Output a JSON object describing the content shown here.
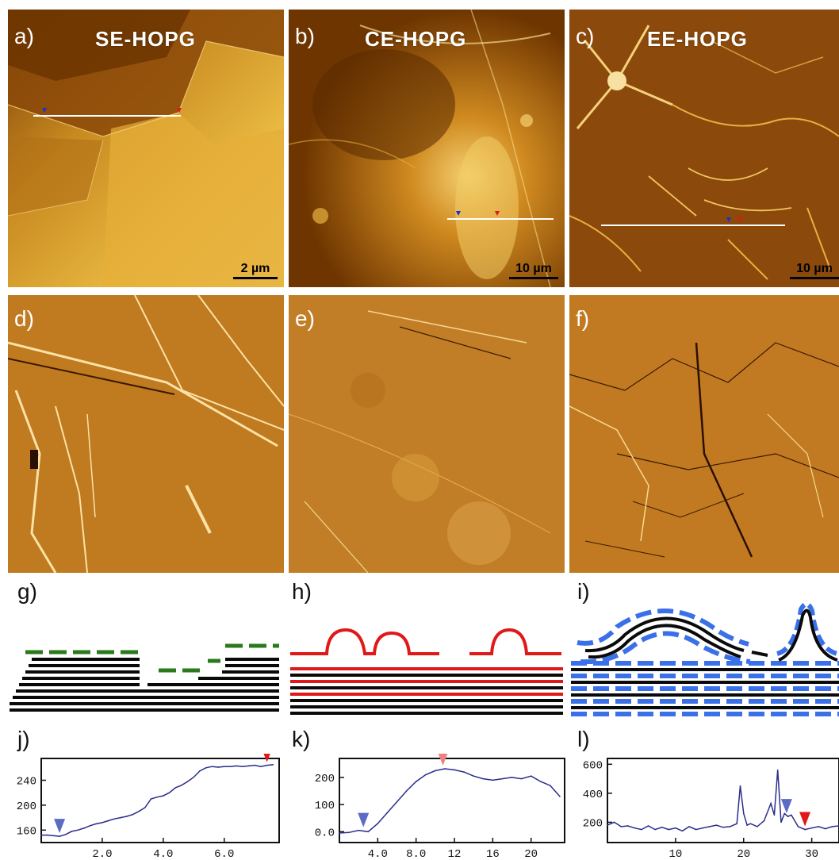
{
  "panels_top": [
    {
      "tag": "a)",
      "title": "SE-HOPG",
      "scale": "2 µm"
    },
    {
      "tag": "b)",
      "title": "CE-HOPG",
      "scale": "10 µm"
    },
    {
      "tag": "c)",
      "title": "EE-HOPG",
      "scale": "10 µm"
    }
  ],
  "panels_mid": [
    {
      "tag": "d)"
    },
    {
      "tag": "e)"
    },
    {
      "tag": "f)"
    }
  ],
  "schematics": [
    {
      "tag": "g)"
    },
    {
      "tag": "h)"
    },
    {
      "tag": "i)"
    }
  ],
  "colors": {
    "afm_dark": "#6a3300",
    "afm_mid": "#b86a10",
    "afm_light": "#f0c050",
    "graphene_black": "#0a0a0a",
    "g_green": "#2a7a1c",
    "h_red": "#e01818",
    "i_blue": "#3a70e8",
    "profile_line": "#2a2d8c",
    "marker_blue": "#5a6cc4",
    "marker_red": "#e01818",
    "marker_pink": "#f08080"
  },
  "chart_data": [
    {
      "type": "line",
      "tag": "j)",
      "x": [
        0.0,
        0.2,
        0.4,
        0.6,
        0.8,
        1.0,
        1.2,
        1.4,
        1.6,
        1.8,
        2.0,
        2.2,
        2.4,
        2.6,
        2.8,
        3.0,
        3.2,
        3.4,
        3.6,
        3.8,
        4.0,
        4.2,
        4.4,
        4.6,
        4.8,
        5.0,
        5.2,
        5.4,
        5.6,
        5.8,
        6.0,
        6.2,
        6.4,
        6.6,
        6.8,
        7.0,
        7.2,
        7.4,
        7.6
      ],
      "values": [
        152,
        152,
        151,
        150,
        153,
        158,
        160,
        163,
        167,
        170,
        172,
        175,
        178,
        180,
        182,
        185,
        190,
        196,
        210,
        213,
        215,
        220,
        228,
        232,
        238,
        245,
        255,
        260,
        262,
        261,
        262,
        262,
        263,
        262,
        263,
        264,
        262,
        264,
        265
      ],
      "xticks": [
        "2.0",
        "4.0",
        "6.0"
      ],
      "xtick_values": [
        2.0,
        4.0,
        6.0
      ],
      "yticks": [
        "160",
        "200",
        "240"
      ],
      "ytick_values": [
        160,
        200,
        240
      ],
      "xlim": [
        0,
        7.8
      ],
      "ylim": [
        140,
        275
      ],
      "markers": [
        {
          "x": 0.6,
          "color": "blue"
        },
        {
          "x": 7.4,
          "color": "red"
        }
      ]
    },
    {
      "type": "line",
      "tag": "k)",
      "x": [
        0,
        1,
        2,
        3,
        4,
        5,
        6,
        7,
        8,
        9,
        10,
        11,
        12,
        13,
        14,
        15,
        16,
        17,
        18,
        19,
        20,
        21,
        22,
        23
      ],
      "values": [
        -5,
        -3,
        5,
        0,
        30,
        70,
        110,
        150,
        185,
        210,
        225,
        232,
        228,
        220,
        205,
        195,
        190,
        195,
        200,
        195,
        205,
        185,
        170,
        130
      ],
      "xticks": [
        "4.0",
        "8.0",
        "12",
        "16",
        "20"
      ],
      "xtick_values": [
        4,
        8,
        12,
        16,
        20
      ],
      "yticks": [
        "0.0",
        "100",
        "200"
      ],
      "ytick_values": [
        0,
        100,
        200
      ],
      "xlim": [
        0,
        23.5
      ],
      "ylim": [
        -40,
        270
      ],
      "markers": [
        {
          "x": 2.5,
          "color": "blue"
        },
        {
          "x": 10.8,
          "color": "pink"
        }
      ]
    },
    {
      "type": "line",
      "tag": "l)",
      "x": [
        0,
        1,
        2,
        3,
        4,
        5,
        6,
        7,
        8,
        9,
        10,
        11,
        12,
        13,
        14,
        15,
        16,
        17,
        18,
        19,
        19.5,
        20,
        20.5,
        21,
        22,
        23,
        24,
        24.5,
        25,
        25.5,
        26,
        26.5,
        27,
        28,
        29,
        30,
        31,
        32,
        33,
        34
      ],
      "values": [
        180,
        200,
        170,
        175,
        160,
        150,
        175,
        150,
        165,
        150,
        160,
        140,
        170,
        150,
        160,
        170,
        180,
        165,
        170,
        190,
        450,
        260,
        180,
        190,
        170,
        210,
        330,
        250,
        560,
        200,
        260,
        240,
        250,
        170,
        150,
        160,
        170,
        155,
        170,
        175
      ],
      "xticks": [
        "10",
        "20",
        "30"
      ],
      "xtick_values": [
        10,
        20,
        30
      ],
      "yticks": [
        "200",
        "400",
        "600"
      ],
      "ytick_values": [
        200,
        400,
        600
      ],
      "xlim": [
        0,
        34
      ],
      "ylim": [
        60,
        640
      ],
      "markers": [
        {
          "x": 26.3,
          "color": "blue"
        },
        {
          "x": 29,
          "color": "red"
        }
      ]
    }
  ]
}
